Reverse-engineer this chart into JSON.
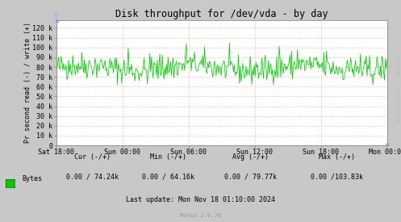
{
  "title": "Disk throughput for /dev/vda - by day",
  "ylabel": "Pr second read (-) / write (+)",
  "background_color": "#c8c8c8",
  "plot_bg_color": "#ffffff",
  "grid_color": "#e8b0b0",
  "line_color": "#00cc00",
  "ytick_labels": [
    "0",
    "10 k",
    "20 k",
    "30 k",
    "40 k",
    "50 k",
    "60 k",
    "70 k",
    "80 k",
    "90 k",
    "100 k",
    "110 k",
    "120 k"
  ],
  "ytick_values": [
    0,
    10000,
    20000,
    30000,
    40000,
    50000,
    60000,
    70000,
    80000,
    90000,
    100000,
    110000,
    120000
  ],
  "ylim": [
    0,
    128000
  ],
  "xtick_labels": [
    "Sat 18:00",
    "Sun 00:00",
    "Sun 06:00",
    "Sun 12:00",
    "Sun 18:00",
    "Mon 00:00"
  ],
  "legend_label": "Bytes",
  "legend_color": "#00cc00",
  "cur_text": "Cur (-/+)",
  "cur_val": "0.00 / 74.24k",
  "min_text": "Min (-/+)",
  "min_val": "0.00 / 64.16k",
  "avg_text": "Avg (-/+)",
  "avg_val": "0.00 / 79.77k",
  "max_text": "Max (-/+)",
  "max_val": "0.00 /103.83k",
  "last_update": "Last update: Mon Nov 18 01:10:00 2024",
  "munin_version": "Munin 2.0.76",
  "rrdtool_label": "RRDTOOL / TOBI OETIKER",
  "n_points": 400,
  "base_value": 79000,
  "noise_scale": 7000,
  "seed": 42
}
